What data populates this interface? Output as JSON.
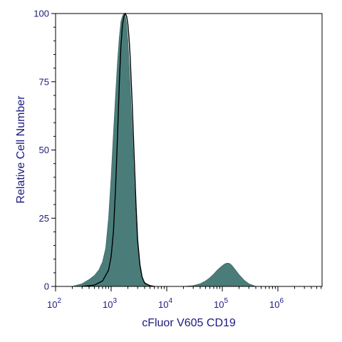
{
  "chart_data": {
    "type": "area",
    "xlabel": "cFluor V605 CD19",
    "ylabel": "Relative Cell Number",
    "x_scale": "log",
    "xlim": [
      100,
      40000000
    ],
    "ylim": [
      0,
      100
    ],
    "grid": false,
    "legend": "none",
    "x_ticks": [
      {
        "value": 100,
        "base": "10",
        "exp": "2"
      },
      {
        "value": 1000,
        "base": "10",
        "exp": "3"
      },
      {
        "value": 10000,
        "base": "10",
        "exp": "4"
      },
      {
        "value": 100000,
        "base": "10",
        "exp": "5"
      },
      {
        "value": 1000000,
        "base": "10",
        "exp": "6"
      }
    ],
    "y_ticks": [
      {
        "value": 0,
        "label": "0"
      },
      {
        "value": 25,
        "label": "25"
      },
      {
        "value": 50,
        "label": "50"
      },
      {
        "value": 75,
        "label": "75"
      },
      {
        "value": 100,
        "label": "100"
      }
    ],
    "series": [
      {
        "style": "filled",
        "color": "#4a7d7a",
        "x": [
          200,
          300,
          400,
          500,
          600,
          700,
          800,
          900,
          1000,
          1100,
          1200,
          1300,
          1400,
          1500,
          1600,
          1700,
          1800,
          1900,
          2000,
          2200,
          2400,
          2600,
          2800,
          3000,
          3300,
          3600,
          4000,
          4500,
          5000,
          6000,
          7000,
          8000,
          10000,
          15000,
          20000,
          30000,
          40000,
          50000,
          60000,
          70000,
          80000,
          90000,
          100000,
          110000,
          120000,
          130000,
          140000,
          150000,
          170000,
          200000,
          250000,
          300000,
          400000
        ],
        "y": [
          0,
          1,
          2.5,
          4,
          6,
          9,
          14,
          25,
          40,
          56,
          70,
          82,
          91,
          97,
          99,
          100,
          99,
          96,
          90,
          74,
          56,
          38,
          24,
          14,
          7,
          3,
          1.5,
          0.7,
          0.3,
          0,
          0,
          0,
          0,
          0,
          0,
          0.3,
          1,
          2,
          3.2,
          4.5,
          5.8,
          6.8,
          7.6,
          8.2,
          8.5,
          8.5,
          8.2,
          7.6,
          6.2,
          4.3,
          2.2,
          1,
          0
        ]
      },
      {
        "style": "outline",
        "color": "#000000",
        "x": [
          300,
          500,
          700,
          900,
          1000,
          1100,
          1200,
          1300,
          1400,
          1500,
          1600,
          1700,
          1800,
          1900,
          2000,
          2100,
          2200,
          2400,
          2600,
          2800,
          3000,
          3300,
          3600,
          4000,
          5000,
          6000
        ],
        "y": [
          0,
          0.5,
          2,
          6,
          11,
          20,
          36,
          55,
          74,
          88,
          96,
          99,
          100,
          99,
          96,
          91,
          84,
          66,
          47,
          30,
          17,
          8,
          3.5,
          1.2,
          0.3,
          0
        ]
      }
    ]
  }
}
